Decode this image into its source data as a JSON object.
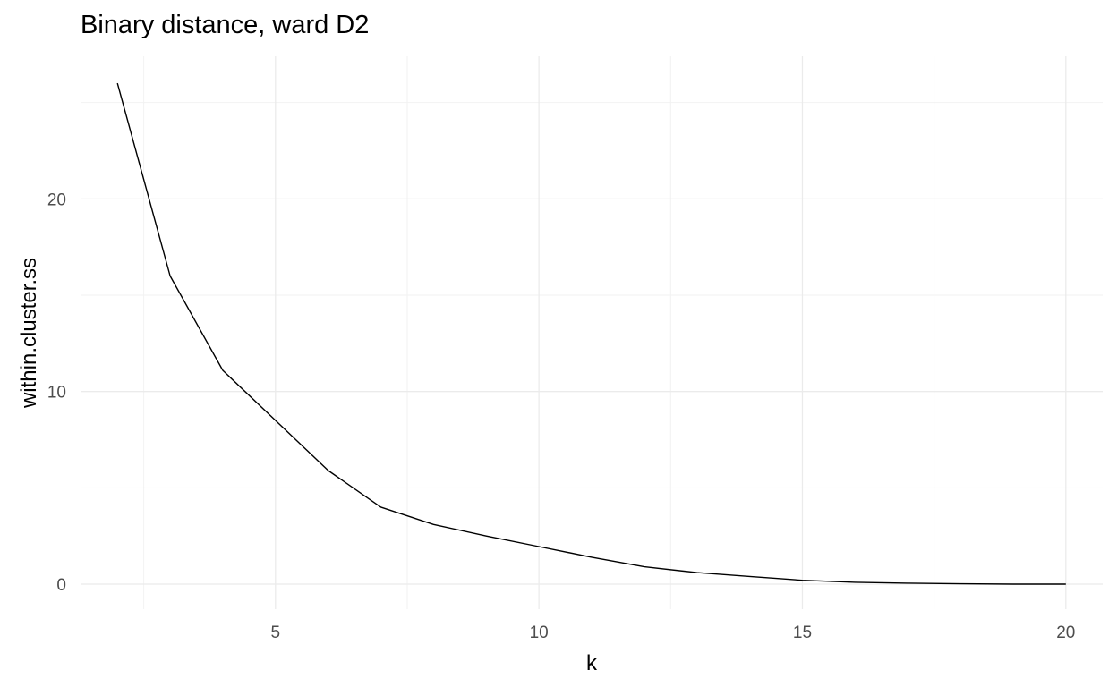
{
  "chart_data": {
    "type": "line",
    "title": "Binary distance, ward D2",
    "xlabel": "k",
    "ylabel": "within.cluster.ss",
    "x": [
      2,
      3,
      4,
      5,
      6,
      7,
      8,
      9,
      10,
      11,
      12,
      13,
      14,
      15,
      16,
      17,
      18,
      19,
      20
    ],
    "series": [
      {
        "values": [
          26.0,
          16.0,
          11.1,
          8.5,
          5.9,
          4.0,
          3.1,
          2.5,
          1.95,
          1.4,
          0.9,
          0.6,
          0.4,
          0.2,
          0.1,
          0.05,
          0.02,
          0.0,
          0.0
        ],
        "color": "#000000"
      }
    ],
    "xlim": [
      1.3,
      20.7
    ],
    "ylim": [
      -1.3,
      27.4
    ],
    "x_ticks": [
      5,
      10,
      15,
      20
    ],
    "y_ticks": [
      0,
      10,
      20
    ],
    "grid": true,
    "colors": {
      "grid_major": "#ebebeb",
      "grid_minor": "#f2f2f2",
      "tick_text": "#4d4d4d"
    }
  }
}
